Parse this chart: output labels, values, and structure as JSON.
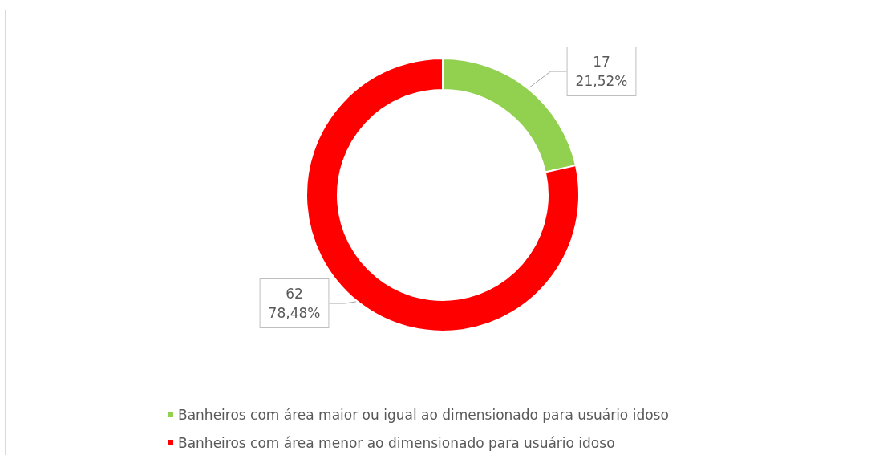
{
  "chart_data": {
    "type": "donut",
    "categories": [
      "Banheiros com área maior ou igual ao dimensionado para usuário idoso",
      "Banheiros com área menor ao dimensionado para usuário idoso"
    ],
    "values": [
      17,
      62
    ],
    "colors": [
      "#92d050",
      "#ff0000"
    ],
    "value_labels": [
      "17\n21,52%",
      "62\n78,48%"
    ],
    "legend": "bottom"
  }
}
